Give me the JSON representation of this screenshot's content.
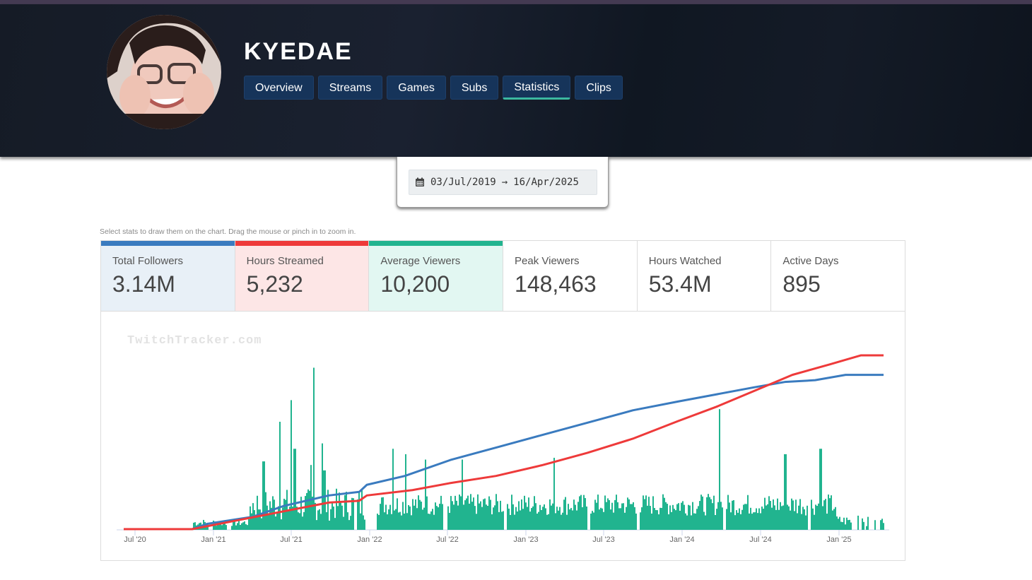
{
  "header": {
    "channel_name": "KYEDAE",
    "tabs": [
      {
        "label": "Overview",
        "active": false
      },
      {
        "label": "Streams",
        "active": false
      },
      {
        "label": "Games",
        "active": false
      },
      {
        "label": "Subs",
        "active": false
      },
      {
        "label": "Statistics",
        "active": true
      },
      {
        "label": "Clips",
        "active": false
      }
    ]
  },
  "date_range": {
    "icon": "calendar-icon",
    "start": "03/Jul/2019",
    "arrow": "→",
    "end": "16/Apr/2025"
  },
  "hint": "Select stats to draw them on the chart. Drag the mouse or pinch in to zoom in.",
  "stats": [
    {
      "label": "Total Followers",
      "value": "3.14M",
      "selected": true,
      "color": "#3a7bbf",
      "bg": "#e8f0f7"
    },
    {
      "label": "Hours Streamed",
      "value": "5,232",
      "selected": true,
      "color": "#ee3a3a",
      "bg": "#fde6e6"
    },
    {
      "label": "Average Viewers",
      "value": "10,200",
      "selected": true,
      "color": "#21b48f",
      "bg": "#e2f7f2"
    },
    {
      "label": "Peak Viewers",
      "value": "148,463",
      "selected": false
    },
    {
      "label": "Hours Watched",
      "value": "53.4M",
      "selected": false
    },
    {
      "label": "Active Days",
      "value": "895",
      "selected": false
    }
  ],
  "watermark": "TwitchTracker.com",
  "chart_data": {
    "type": "line+bar",
    "x_ticks": [
      "Jul '20",
      "Jan '21",
      "Jul '21",
      "Jan '22",
      "Jul '22",
      "Jan '23",
      "Jul '23",
      "Jan '24",
      "Jul '24",
      "Jan '25"
    ],
    "legend_position": "stat cards above chart",
    "grid": false,
    "series": [
      {
        "name": "Total Followers",
        "type": "line",
        "color": "#3a7bbf",
        "points_relative": [
          [
            0,
            0
          ],
          [
            0.09,
            0
          ],
          [
            0.11,
            0.03
          ],
          [
            0.17,
            0.07
          ],
          [
            0.21,
            0.13
          ],
          [
            0.27,
            0.19
          ],
          [
            0.31,
            0.21
          ],
          [
            0.32,
            0.25
          ],
          [
            0.37,
            0.3
          ],
          [
            0.43,
            0.39
          ],
          [
            0.49,
            0.46
          ],
          [
            0.55,
            0.53
          ],
          [
            0.61,
            0.6
          ],
          [
            0.67,
            0.67
          ],
          [
            0.73,
            0.72
          ],
          [
            0.78,
            0.76
          ],
          [
            0.83,
            0.8
          ],
          [
            0.87,
            0.83
          ],
          [
            0.91,
            0.84
          ],
          [
            0.95,
            0.87
          ],
          [
            1.0,
            0.87
          ]
        ]
      },
      {
        "name": "Hours Streamed",
        "type": "line",
        "color": "#ee3a3a",
        "points_relative": [
          [
            0,
            0
          ],
          [
            0.09,
            0
          ],
          [
            0.15,
            0.05
          ],
          [
            0.21,
            0.1
          ],
          [
            0.27,
            0.15
          ],
          [
            0.31,
            0.16
          ],
          [
            0.32,
            0.19
          ],
          [
            0.38,
            0.22
          ],
          [
            0.43,
            0.26
          ],
          [
            0.49,
            0.3
          ],
          [
            0.55,
            0.36
          ],
          [
            0.61,
            0.43
          ],
          [
            0.67,
            0.51
          ],
          [
            0.73,
            0.61
          ],
          [
            0.78,
            0.69
          ],
          [
            0.83,
            0.78
          ],
          [
            0.88,
            0.87
          ],
          [
            0.93,
            0.93
          ],
          [
            0.97,
            0.98
          ],
          [
            1.0,
            0.98
          ]
        ]
      },
      {
        "name": "Average Viewers",
        "type": "bar",
        "color": "#21b48f",
        "note": "daily bars; tallest spike around Dec 2021, notable spikes Nov 2021, May 2024, Sep 2024, Dec 2024"
      }
    ]
  }
}
